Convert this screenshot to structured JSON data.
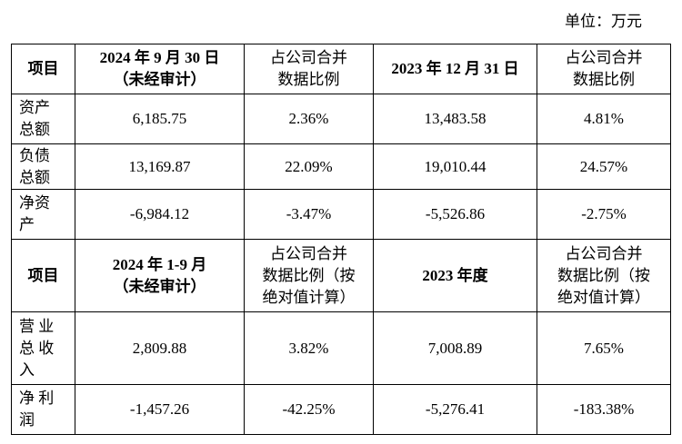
{
  "unit": "单位：万元",
  "table": {
    "rows": [
      [
        [
          "项目"
        ],
        [
          "2024 年 9 月 30 日",
          "（未经审计）"
        ],
        [
          "占公司合并",
          "数据比例"
        ],
        [
          "2023 年 12 月 31 日"
        ],
        [
          "占公司合并",
          "数据比例"
        ]
      ],
      [
        [
          "资产",
          "总额"
        ],
        [
          "6,185.75"
        ],
        [
          "2.36%"
        ],
        [
          "13,483.58"
        ],
        [
          "4.81%"
        ]
      ],
      [
        [
          "负债",
          "总额"
        ],
        [
          "13,169.87"
        ],
        [
          "22.09%"
        ],
        [
          "19,010.44"
        ],
        [
          "24.57%"
        ]
      ],
      [
        [
          "净资",
          "产"
        ],
        [
          "-6,984.12"
        ],
        [
          "-3.47%"
        ],
        [
          "-5,526.86"
        ],
        [
          "-2.75%"
        ]
      ],
      [
        [
          "项目"
        ],
        [
          "2024 年 1-9 月",
          "（未经审计）"
        ],
        [
          "占公司合并",
          "数据比例（按",
          "绝对值计算）"
        ],
        [
          "2023 年度"
        ],
        [
          "占公司合并",
          "数据比例（按",
          "绝对值计算）"
        ]
      ],
      [
        [
          "营 业",
          "总 收",
          "入"
        ],
        [
          "2,809.88"
        ],
        [
          "3.82%"
        ],
        [
          "7,008.89"
        ],
        [
          "7.65%"
        ]
      ],
      [
        [
          "净 利",
          "润"
        ],
        [
          "-1,457.26"
        ],
        [
          "-42.25%"
        ],
        [
          "-5,276.41"
        ],
        [
          "-183.38%"
        ]
      ]
    ]
  }
}
